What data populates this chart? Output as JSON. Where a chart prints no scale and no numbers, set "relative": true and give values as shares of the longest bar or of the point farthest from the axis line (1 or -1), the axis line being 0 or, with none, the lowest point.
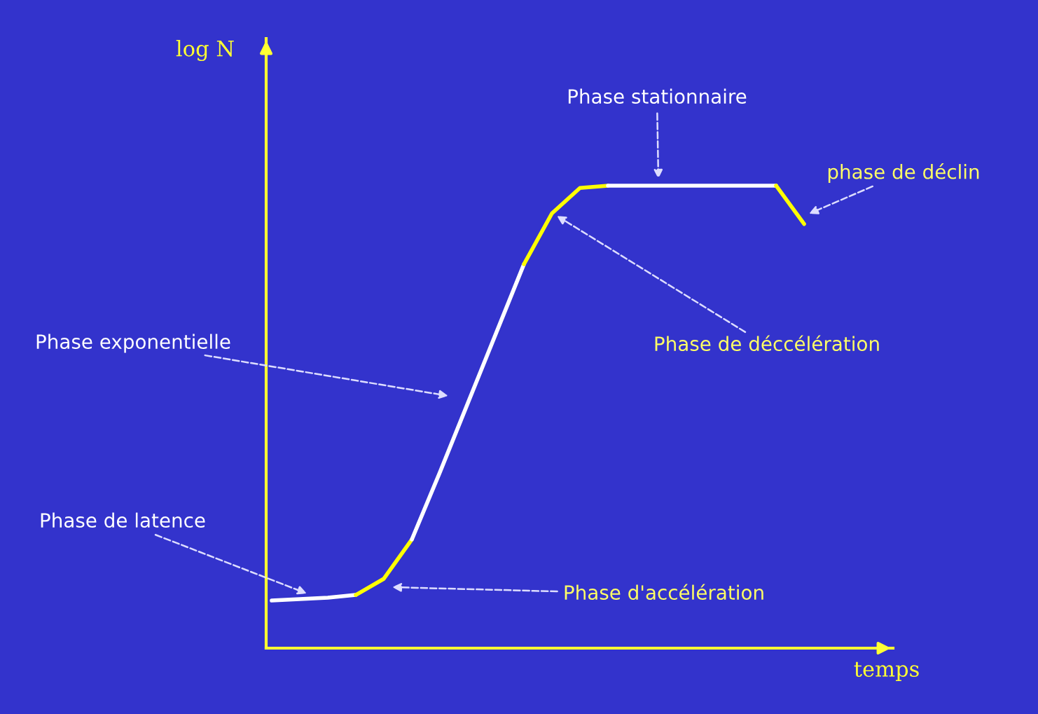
{
  "chart_data": {
    "type": "line",
    "relative": true,
    "xlabel": "temps",
    "legend": false,
    "marker": "none",
    "line_style": "solid",
    "categories": [
      null,
      null,
      null,
      null,
      null,
      null,
      null,
      null,
      null,
      null,
      null,
      null,
      null,
      null,
      null,
      null,
      null,
      null,
      null,
      null
    ],
    "series": [
      {
        "color": "#ffffff",
        "values": [
          0.103,
          0.106,
          0.109,
          0.115,
          null,
          null,
          null,
          null,
          null,
          null,
          null,
          null,
          null,
          null,
          null,
          null,
          null,
          null,
          null,
          null
        ]
      },
      {
        "color": "#ffff00",
        "values": [
          null,
          null,
          null,
          0.115,
          0.15,
          0.235,
          null,
          null,
          null,
          null,
          null,
          null,
          null,
          null,
          null,
          null,
          null,
          null,
          null,
          null
        ]
      },
      {
        "color": "#ffffff",
        "values": [
          null,
          null,
          null,
          null,
          null,
          0.235,
          0.38,
          0.53,
          0.68,
          0.83,
          null,
          null,
          null,
          null,
          null,
          null,
          null,
          null,
          null,
          null
        ]
      },
      {
        "color": "#ffff00",
        "values": [
          null,
          null,
          null,
          null,
          null,
          null,
          null,
          null,
          null,
          0.83,
          0.94,
          0.995,
          1.0,
          null,
          null,
          null,
          null,
          null,
          null,
          null
        ]
      },
      {
        "color": "#ffffff",
        "values": [
          null,
          null,
          null,
          null,
          null,
          null,
          null,
          null,
          null,
          null,
          null,
          null,
          1.0,
          1.0,
          1.0,
          1.0,
          1.0,
          1.0,
          1.0,
          null
        ]
      },
      {
        "color": "#ffff00",
        "values": [
          null,
          null,
          null,
          null,
          null,
          null,
          null,
          null,
          null,
          null,
          null,
          null,
          null,
          null,
          null,
          null,
          null,
          null,
          1.0,
          0.917
        ]
      }
    ],
    "annotations": [
      "Phase stationnaire",
      "phase de déclin",
      "Phase de déccélération",
      "Phase exponentielle",
      "Phase de latence",
      "Phase d'accélération",
      "log N"
    ]
  }
}
